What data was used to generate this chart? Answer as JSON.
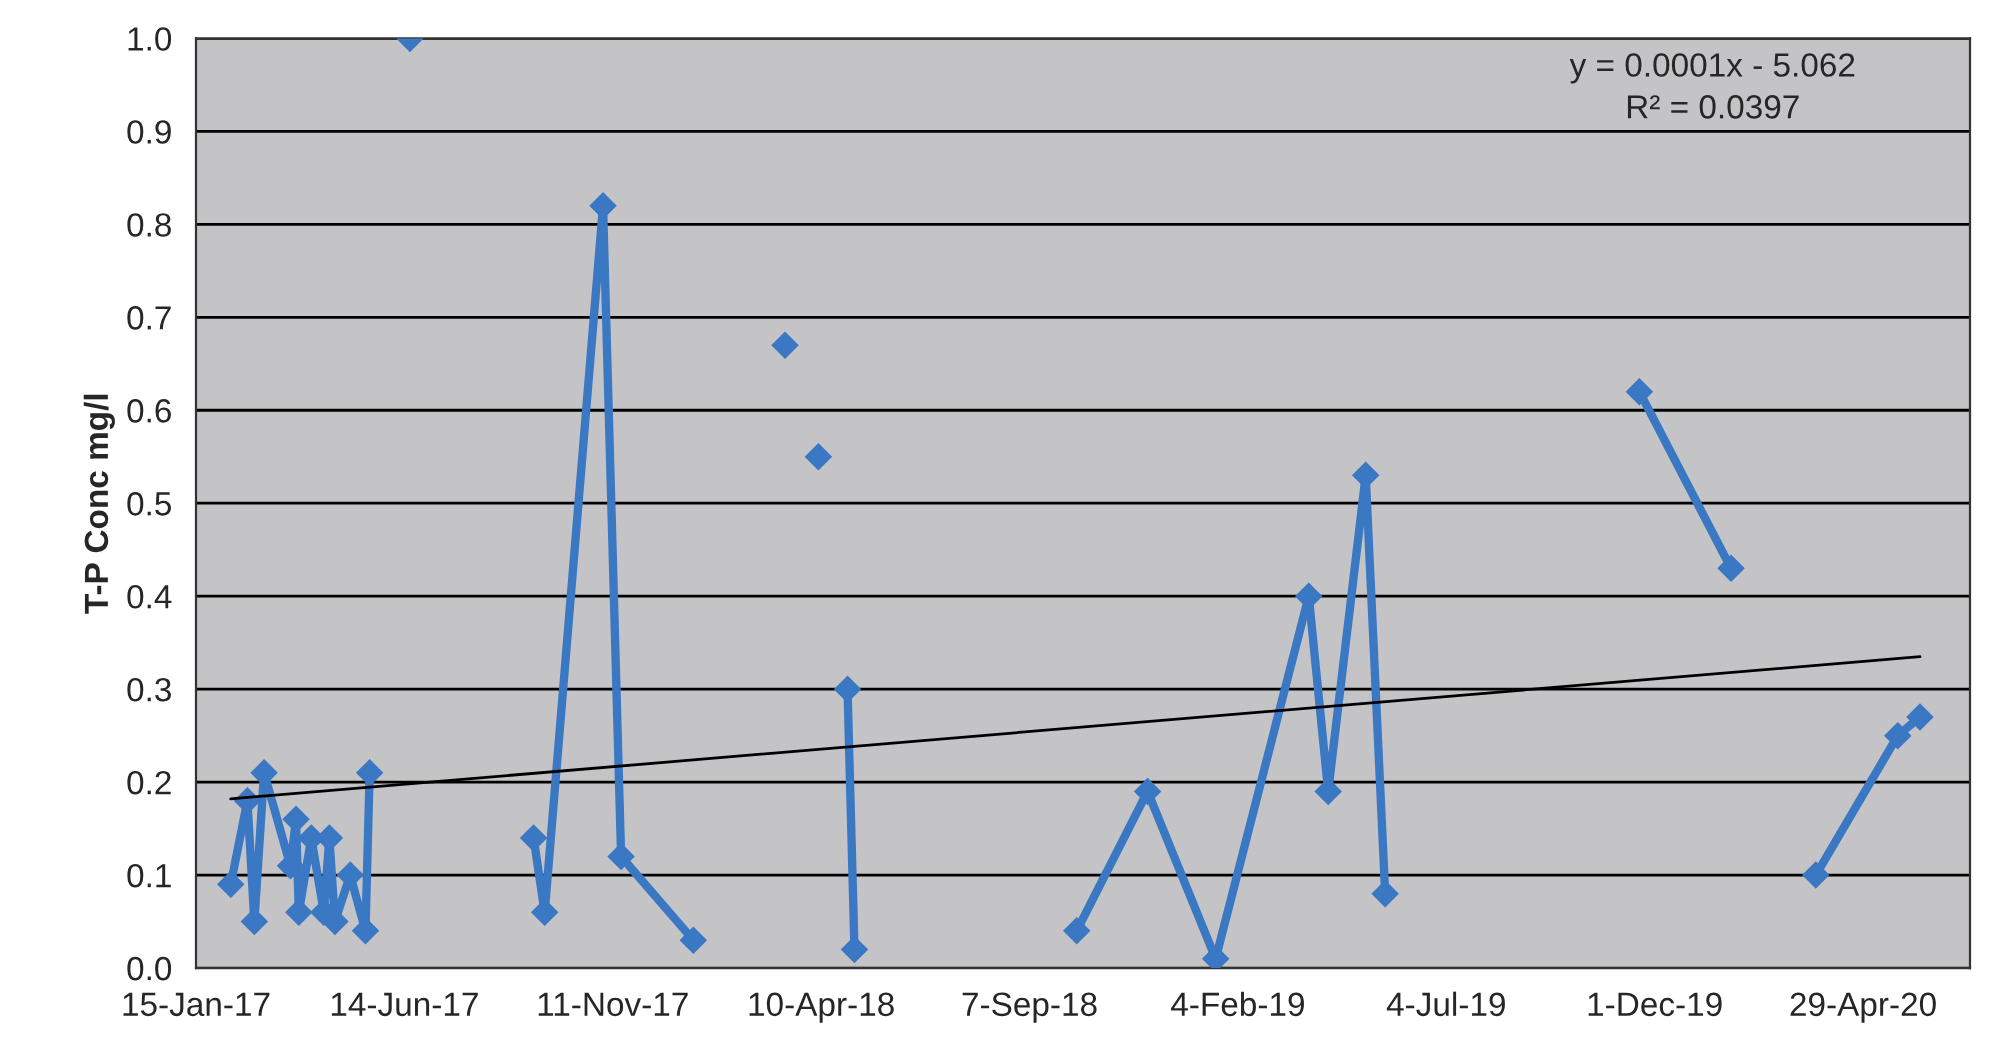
{
  "chart_data": {
    "type": "line",
    "ylabel": "T-P Conc mg/l",
    "annotations": [
      "y = 0.0001x - 5.062",
      "R² = 0.0397"
    ],
    "series": [
      {
        "color": "#3a78c4",
        "marker": "diamond",
        "x": [
          "2017-02-09",
          "2017-02-21",
          "2017-02-26",
          "2017-03-05",
          "2017-03-24",
          "2017-03-28",
          "2017-03-30",
          "2017-04-08",
          "2017-04-17",
          "2017-04-21",
          "2017-04-25",
          "2017-05-06",
          "2017-05-17",
          "2017-05-20",
          "2017-06-04",
          "2017-06-18",
          "2017-09-01",
          "2017-09-15",
          "2017-09-23",
          "2017-11-04",
          "2017-11-17",
          "2018-01-08",
          "2018-02-20",
          "2018-03-15",
          "2018-03-30",
          "2018-04-08",
          "2018-04-20",
          "2018-04-29",
          "2018-05-04",
          "2018-08-01",
          "2018-10-11",
          "2018-12-01",
          "2019-01-19",
          "2019-03-27",
          "2019-04-10",
          "2019-05-07",
          "2019-05-21",
          "2019-09-01",
          "2019-11-20",
          "2020-01-25",
          "2020-03-01",
          "2020-03-26",
          "2020-05-24",
          "2020-06-09"
        ],
        "values": [
          0.09,
          0.18,
          0.05,
          0.21,
          0.11,
          0.16,
          0.06,
          0.14,
          0.06,
          0.14,
          0.05,
          0.1,
          0.04,
          0.21,
          null,
          1.0,
          null,
          0.14,
          0.06,
          0.82,
          0.12,
          0.03,
          null,
          0.67,
          null,
          0.55,
          null,
          0.3,
          0.02,
          null,
          0.04,
          0.19,
          0.01,
          0.4,
          0.19,
          0.53,
          0.08,
          null,
          0.62,
          0.43,
          null,
          0.1,
          0.25,
          0.27
        ]
      },
      {
        "type": "line",
        "color": "#000000",
        "marker": "none",
        "x": [
          "2017-02-09",
          "2020-06-09"
        ],
        "values": [
          0.182,
          0.335
        ]
      }
    ],
    "xlim": [
      "2017-01-15",
      "2020-07-15"
    ],
    "xticks": [
      {
        "value": "2017-01-15",
        "label": "15-Jan-17"
      },
      {
        "value": "2017-06-14",
        "label": "14-Jun-17"
      },
      {
        "value": "2017-11-11",
        "label": "11-Nov-17"
      },
      {
        "value": "2018-04-10",
        "label": "10-Apr-18"
      },
      {
        "value": "2018-09-07",
        "label": "7-Sep-18"
      },
      {
        "value": "2019-02-04",
        "label": "4-Feb-19"
      },
      {
        "value": "2019-07-04",
        "label": "4-Jul-19"
      },
      {
        "value": "2019-12-01",
        "label": "1-Dec-19"
      },
      {
        "value": "2020-04-29",
        "label": "29-Apr-20"
      }
    ],
    "ylim": [
      0,
      1.0
    ],
    "yticks": [
      {
        "value": 0,
        "label": "0.0"
      },
      0.1,
      0.2,
      0.3,
      0.4,
      0.5,
      0.6,
      0.7,
      0.8,
      0.9,
      {
        "value": 1.0,
        "label": "1.0"
      }
    ],
    "grid": "y",
    "legend": false
  }
}
